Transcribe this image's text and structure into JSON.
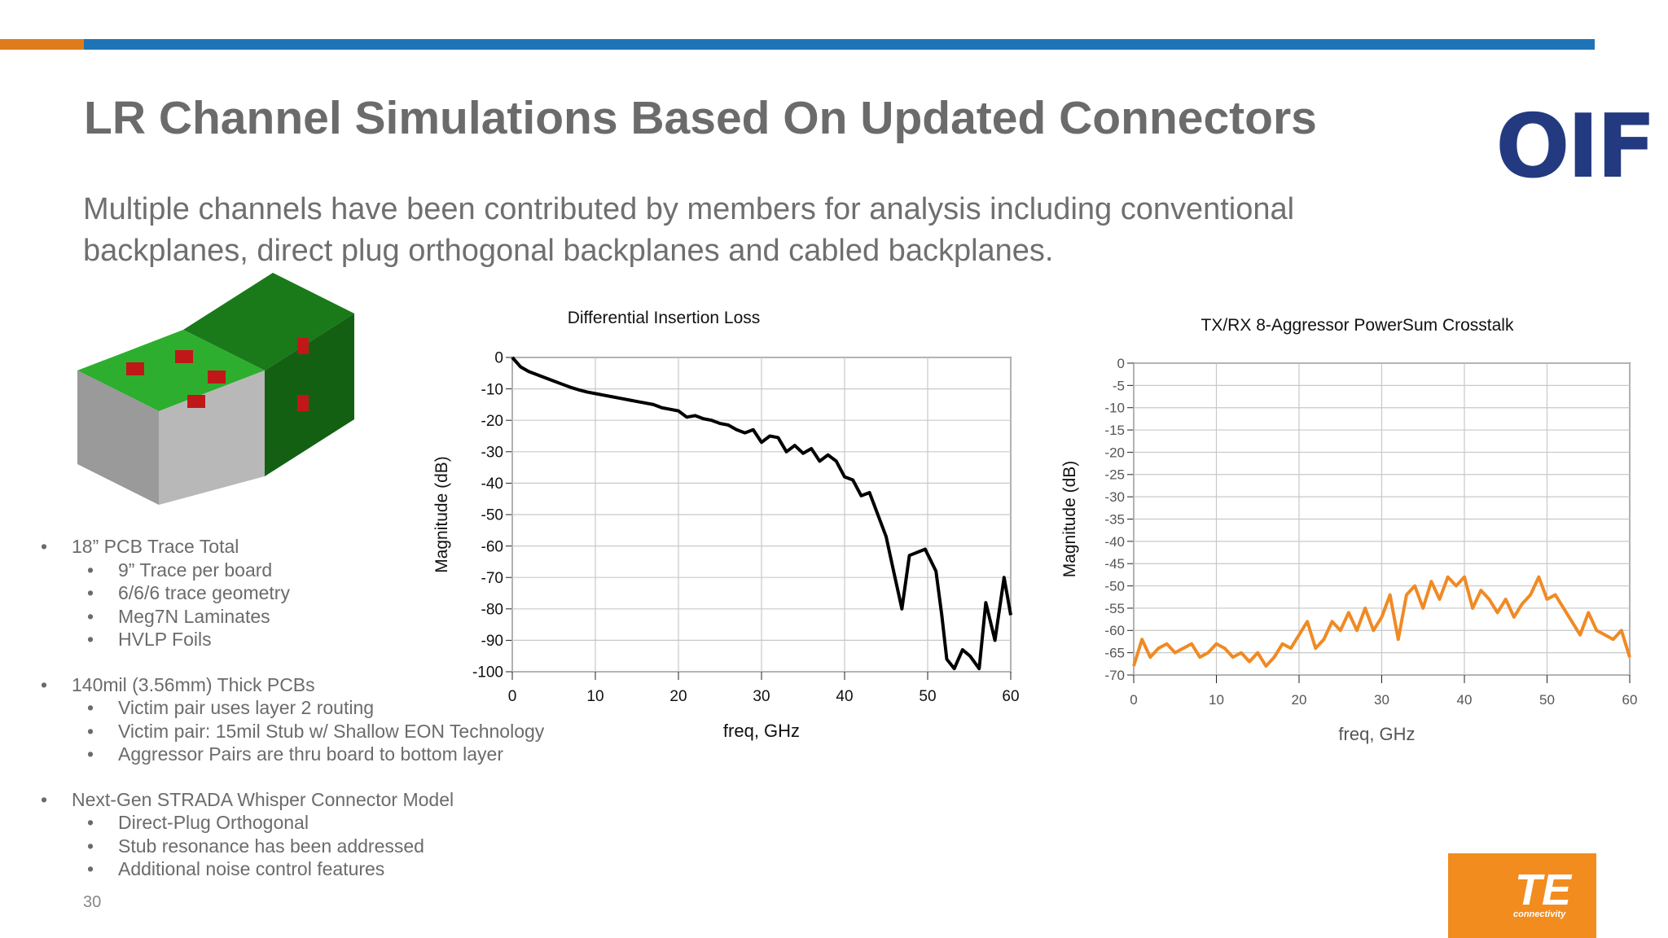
{
  "header": {
    "title": "LR Channel Simulations Based On Updated Connectors",
    "subtitle": "Multiple channels have been contributed by members for analysis including conventional backplanes, direct plug orthogonal backplanes and cabled backplanes.",
    "logo": "OIF"
  },
  "bullets": [
    {
      "text": "18” PCB Trace Total",
      "items": [
        "9” Trace per board",
        "6/6/6 trace geometry",
        "Meg7N Laminates",
        "HVLP Foils"
      ]
    },
    {
      "text": "140mil (3.56mm) Thick PCBs",
      "items": [
        "Victim pair uses layer 2 routing",
        "Victim pair: 15mil Stub w/ Shallow EON Technology",
        "Aggressor Pairs are thru board to bottom layer"
      ]
    },
    {
      "text": "Next-Gen STRADA Whisper Connector Model",
      "items": [
        "Direct-Plug Orthogonal",
        "Stub resonance has been addressed",
        "Additional noise control features"
      ]
    }
  ],
  "footer": {
    "page": "30",
    "brand": "TE",
    "brand_sub": "connectivity"
  },
  "chart_data": [
    {
      "type": "line",
      "title": "Differential Insertion Loss",
      "x_label": "freq, GHz",
      "y_label": "Magnitude (dB)",
      "xlim": [
        0,
        60
      ],
      "ylim": [
        -100,
        0
      ],
      "xticks": [
        0,
        10,
        20,
        30,
        40,
        50,
        60
      ],
      "yticks": [
        0,
        -10,
        -20,
        -30,
        -40,
        -50,
        -60,
        -70,
        -80,
        -90,
        -100
      ],
      "grid": true,
      "x": [
        0,
        1,
        2,
        3,
        4,
        5,
        6,
        7,
        8,
        9,
        10,
        11,
        12,
        13,
        14,
        15,
        16,
        17,
        18,
        19,
        20,
        21,
        22,
        23,
        24,
        25,
        26,
        27,
        28,
        29,
        30,
        31,
        32,
        33,
        34,
        35,
        36,
        37,
        38,
        39,
        40,
        41,
        42,
        43,
        44,
        45,
        45.9,
        46.9,
        47.8,
        49.7,
        51,
        51.7,
        52.3,
        53.2,
        54.2,
        55.1,
        56.2,
        57,
        58.1,
        59.2,
        60
      ],
      "series": [
        {
          "name": "Insertion Loss",
          "color": "#000000",
          "values": [
            0,
            -3,
            -4.5,
            -5.5,
            -6.5,
            -7.5,
            -8.5,
            -9.5,
            -10.3,
            -11,
            -11.5,
            -12,
            -12.5,
            -13,
            -13.5,
            -14,
            -14.5,
            -15,
            -16,
            -16.5,
            -17,
            -19,
            -18.5,
            -19.5,
            -20,
            -21,
            -21.5,
            -23,
            -24,
            -23,
            -27,
            -25,
            -25.5,
            -30,
            -28,
            -30.5,
            -29,
            -33,
            -31,
            -33,
            -38,
            -39,
            -44,
            -43,
            -50,
            -57,
            -68,
            -80,
            -63,
            -61,
            -68,
            -82,
            -96,
            -99,
            -93,
            -95,
            -99,
            -78,
            -90,
            -70,
            -82
          ]
        }
      ]
    },
    {
      "type": "line",
      "title": "TX/RX 8-Aggressor PowerSum Crosstalk",
      "x_label": "freq, GHz",
      "y_label": "Magnitude (dB)",
      "xlim": [
        0,
        60
      ],
      "ylim": [
        -70,
        0
      ],
      "xticks": [
        0,
        10,
        20,
        30,
        40,
        50,
        60
      ],
      "yticks": [
        0,
        -5,
        -10,
        -15,
        -20,
        -25,
        -30,
        -35,
        -40,
        -45,
        -50,
        -55,
        -60,
        -65,
        -70
      ],
      "grid": true,
      "x": [
        0,
        1,
        2,
        3,
        4,
        5,
        6,
        7,
        8,
        9,
        10,
        11,
        12,
        13,
        14,
        15,
        16,
        17,
        18,
        19,
        20,
        21,
        22,
        23,
        24,
        25,
        26,
        27,
        28,
        29,
        30,
        31,
        32,
        33,
        34,
        35,
        36,
        37,
        38,
        39,
        40,
        41,
        42,
        43,
        44,
        45,
        46,
        47,
        48,
        49,
        50,
        51,
        52,
        53,
        54,
        55,
        56,
        57,
        58,
        59,
        60
      ],
      "series": [
        {
          "name": "Crosstalk",
          "color": "#f08a24",
          "values": [
            -68,
            -62,
            -66,
            -64,
            -63,
            -65,
            -64,
            -63,
            -66,
            -65,
            -63,
            -64,
            -66,
            -65,
            -67,
            -65,
            -68,
            -66,
            -63,
            -64,
            -61,
            -58,
            -64,
            -62,
            -58,
            -60,
            -56,
            -60,
            -55,
            -60,
            -57,
            -52,
            -62,
            -52,
            -50,
            -55,
            -49,
            -53,
            -48,
            -50,
            -48,
            -55,
            -51,
            -53,
            -56,
            -53,
            -57,
            -54,
            -52,
            -48,
            -53,
            -52,
            -55,
            -58,
            -61,
            -56,
            -60,
            -61,
            -62,
            -60,
            -66
          ]
        }
      ]
    }
  ]
}
